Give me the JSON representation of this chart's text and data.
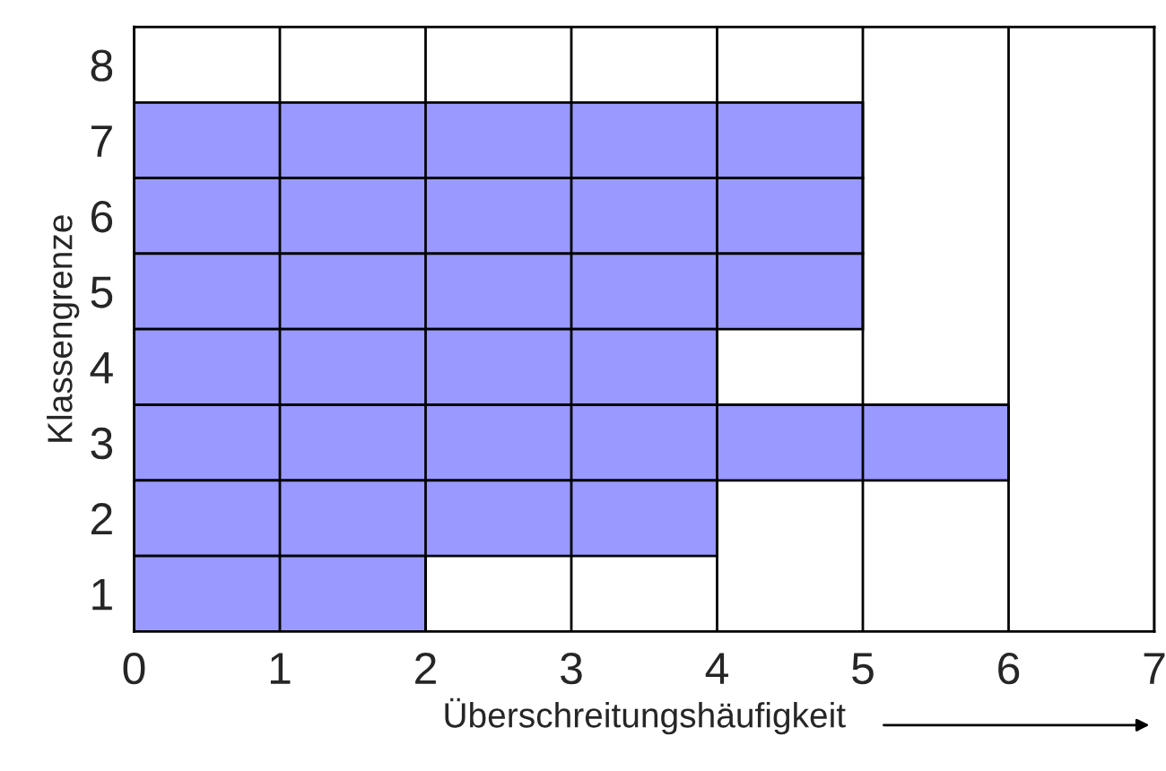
{
  "chart_data": {
    "type": "bar",
    "orientation": "horizontal",
    "xlabel": "Überschreitungshäufigkeit",
    "ylabel": "Klassengrenze",
    "categories": [
      "8",
      "7",
      "6",
      "5",
      "4",
      "3",
      "2",
      "1"
    ],
    "values": [
      null,
      5,
      5,
      5,
      4,
      6,
      4,
      2
    ],
    "color": "#9999ff",
    "xlim": [
      0,
      7
    ],
    "xticks": [
      0,
      1,
      2,
      3,
      4,
      5,
      6,
      7
    ],
    "grid": "x"
  }
}
